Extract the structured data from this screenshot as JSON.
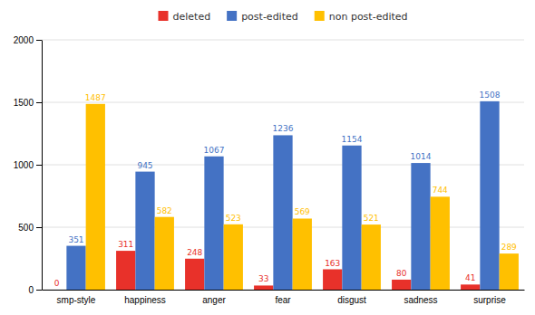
{
  "chart_data": {
    "type": "bar",
    "categories": [
      "smp-style",
      "happiness",
      "anger",
      "fear",
      "disgust",
      "sadness",
      "surprise"
    ],
    "series": [
      {
        "name": "deleted",
        "color": "#e8312a",
        "values": [
          0,
          311,
          248,
          33,
          163,
          80,
          41
        ]
      },
      {
        "name": "post-edited",
        "color": "#4472c4",
        "values": [
          351,
          945,
          1067,
          1236,
          1154,
          1014,
          1508
        ]
      },
      {
        "name": "non post-edited",
        "color": "#ffc000",
        "values": [
          1487,
          582,
          523,
          569,
          521,
          744,
          289
        ]
      }
    ],
    "ylim": [
      0,
      2000
    ],
    "yticks": [
      0,
      500,
      1000,
      1500,
      2000
    ],
    "grid": true,
    "legend": "top",
    "data_labels": true
  }
}
